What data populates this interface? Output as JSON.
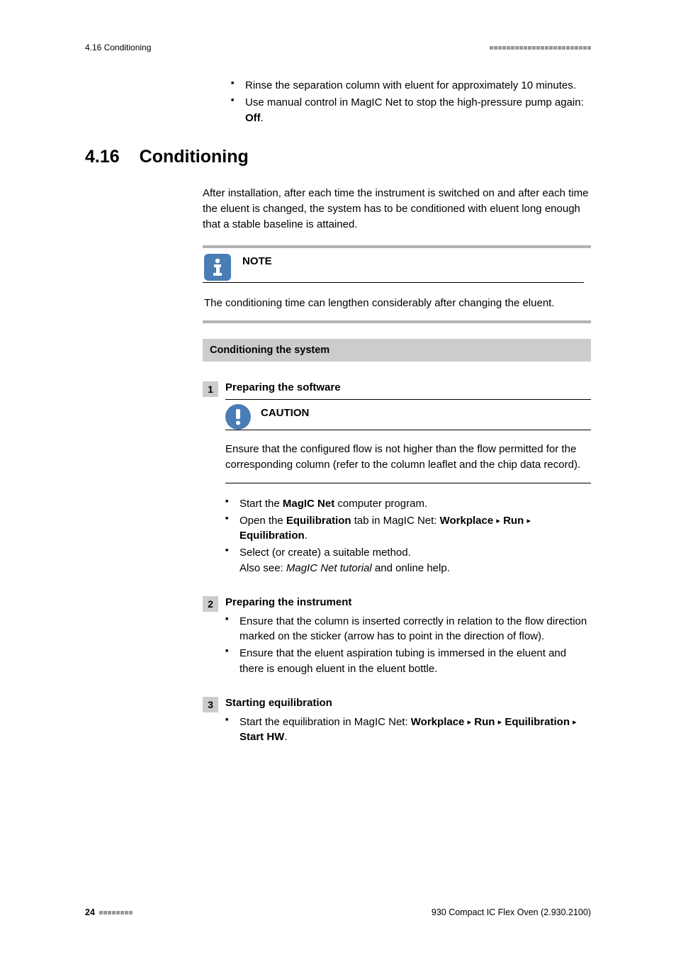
{
  "header": {
    "left": "4.16 Conditioning",
    "square_count": 24,
    "square_color": "#999999"
  },
  "top_bullets": {
    "items": [
      "Rinse the separation column with eluent for approximately 10 minutes.",
      "Use manual control in MagIC Net to stop the high-pressure pump again: "
    ],
    "item1_bold_suffix": "Off",
    "item1_suffix_after": "."
  },
  "section": {
    "number": "4.16",
    "title": "Conditioning",
    "intro": "After installation, after each time the instrument is switched on and after each time the eluent is changed, the system has to be conditioned with eluent long enough that a stable baseline is attained."
  },
  "note": {
    "label": "NOTE",
    "body": "The conditioning time can lengthen considerably after changing the eluent.",
    "icon_bg": "#4a7db5",
    "bar_color": "#b3b3b3"
  },
  "procedure": {
    "title": "Conditioning the system",
    "bar_bg": "#cccccc"
  },
  "step1": {
    "num": "1",
    "title": "Preparing the software",
    "caution_label": "CAUTION",
    "caution_body": "Ensure that the configured flow is not higher than the flow permitted for the corresponding column (refer to the column leaflet and the chip data record).",
    "b1_pre": "Start the ",
    "b1_bold": "MagIC Net",
    "b1_post": " computer program.",
    "b2_pre": "Open the ",
    "b2_bold1": "Equilibration",
    "b2_mid": " tab in MagIC Net: ",
    "b2_bold2": "Workplace",
    "b2_bold3": "Run",
    "b2_bold4": "Equilibration",
    "b3_line1": "Select (or create) a suitable method.",
    "b3_line2_pre": "Also see: ",
    "b3_line2_em": "MagIC Net tutorial",
    "b3_line2_post": " and online help."
  },
  "step2": {
    "num": "2",
    "title": "Preparing the instrument",
    "b1": "Ensure that the column is inserted correctly in relation to the flow direction marked on the sticker (arrow has to point in the direction of flow).",
    "b2": "Ensure that the eluent aspiration tubing is immersed in the eluent and there is enough eluent in the eluent bottle."
  },
  "step3": {
    "num": "3",
    "title": "Starting equilibration",
    "b1_pre": "Start the equilibration in MagIC Net: ",
    "b1_bold1": "Workplace",
    "b1_bold2": "Run",
    "b1_bold3": "Equilibration",
    "b1_bold4": "Start HW"
  },
  "footer": {
    "page": "24",
    "square_count": 8,
    "right": "930 Compact IC Flex Oven (2.930.2100)"
  },
  "colors": {
    "body_text": "#000000",
    "step_num_bg": "#cccccc",
    "icon_blue": "#4a7db5"
  }
}
